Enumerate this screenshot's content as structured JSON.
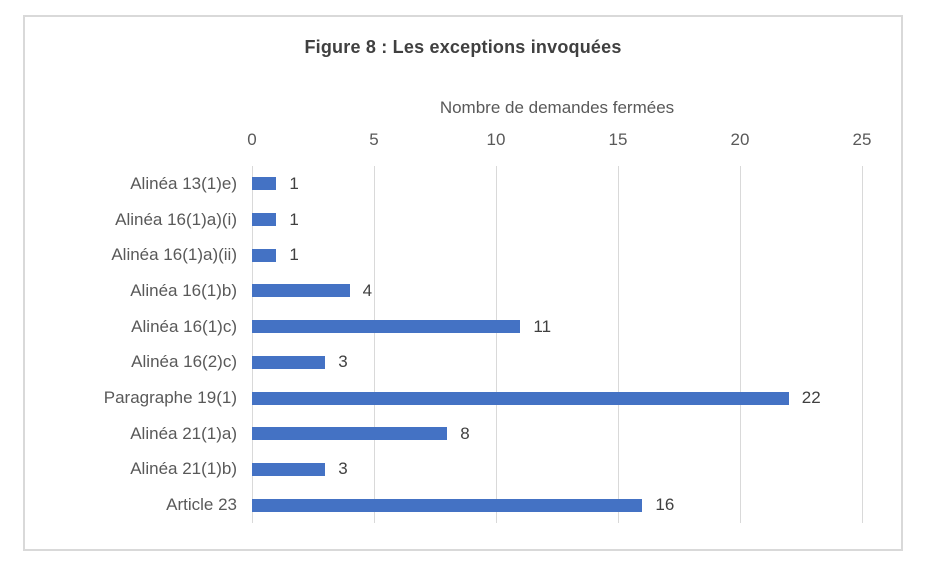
{
  "figure": {
    "title": "Figure 8 : Les exceptions invoquées"
  },
  "chart_data": {
    "type": "bar",
    "orientation": "horizontal",
    "title": "Figure 8 : Les exceptions invoquées",
    "xlabel": "Nombre de demandes fermées",
    "categories": [
      "Alinéa 13(1)e)",
      "Alinéa 16(1)a)(i)",
      "Alinéa 16(1)a)(ii)",
      "Alinéa 16(1)b)",
      "Alinéa 16(1)c)",
      "Alinéa 16(2)c)",
      "Paragraphe 19(1)",
      "Alinéa 21(1)a)",
      "Alinéa 21(1)b)",
      "Article 23"
    ],
    "values": [
      1,
      1,
      1,
      4,
      11,
      3,
      22,
      8,
      3,
      16
    ],
    "data_labels": [
      1,
      1,
      1,
      4,
      11,
      3,
      22,
      8,
      3,
      16
    ],
    "xlim": [
      0,
      25
    ],
    "xticks": [
      0,
      5,
      10,
      15,
      20,
      25
    ],
    "grid": true,
    "legend": false,
    "colors": {
      "bar": "#4472C4",
      "gridline": "#D9D9D9",
      "frame_border": "#D9D9D9",
      "title_text": "#404040",
      "axis_text": "#595959",
      "value_text": "#404040",
      "background": "#ffffff"
    }
  }
}
